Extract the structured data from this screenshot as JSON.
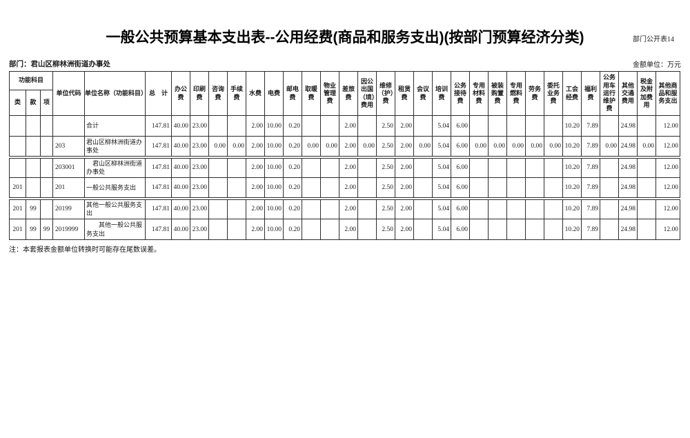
{
  "page": {
    "corner_label": "部门公开表14",
    "title": "一般公共预算基本支出表--公用经费(商品和服务支出)(按部门预算经济分类)",
    "department": "部门：君山区柳林洲街道办事处",
    "unit": "金额单位：万元",
    "note": "注：本套报表金额单位转换时可能存在尾数误差。"
  },
  "table": {
    "header": {
      "function_subject": "功能科目",
      "function_cols": [
        "类",
        "款",
        "项"
      ],
      "unit_code": "单位代码",
      "unit_name": "单位名称（功能科目）",
      "total": "总　计",
      "expense_columns": [
        "办公费",
        "印刷费",
        "咨询费",
        "手续费",
        "水费",
        "电费",
        "邮电费",
        "取暖费",
        "物业管理费",
        "差旅费",
        "因公出国（境）费用",
        "维修（护）费",
        "租赁费",
        "会议费",
        "培训费",
        "公务接待费",
        "专用材料费",
        "被装购置费",
        "专用燃料费",
        "劳务费",
        "委托业务费",
        "工会经费",
        "福利费",
        "公务用车运行维护费",
        "其他交通费用",
        "税金及附加费用",
        "其他商品和服务支出"
      ]
    },
    "rows": [
      {
        "lei": "",
        "kuan": "",
        "xiang": "",
        "code": "",
        "name": "合计",
        "total": "147.81",
        "values": [
          "40.00",
          "23.00",
          "",
          "",
          "2.00",
          "10.00",
          "0.20",
          "",
          "",
          "2.00",
          "",
          "2.50",
          "2.00",
          "",
          "5.04",
          "6.00",
          "",
          "",
          "",
          "",
          "",
          "10.20",
          "7.89",
          "",
          "24.98",
          "",
          "12.00"
        ]
      },
      {
        "lei": "",
        "kuan": "",
        "xiang": "",
        "code": "203",
        "name": "君山区柳林洲街道办事处",
        "total": "147.81",
        "values": [
          "40.00",
          "23.00",
          "0.00",
          "0.00",
          "2.00",
          "10.00",
          "0.20",
          "0.00",
          "0.00",
          "2.00",
          "0.00",
          "2.50",
          "2.00",
          "0.00",
          "5.04",
          "6.00",
          "0.00",
          "0.00",
          "0.00",
          "0.00",
          "0.00",
          "10.20",
          "7.89",
          "0.00",
          "24.98",
          "0.00",
          "12.00"
        ]
      },
      {
        "lei": "",
        "kuan": "",
        "xiang": "",
        "code": "203001",
        "name": "　君山区柳林洲街道办事处",
        "total": "147.81",
        "values": [
          "40.00",
          "23.00",
          "",
          "",
          "2.00",
          "10.00",
          "0.20",
          "",
          "",
          "2.00",
          "",
          "2.50",
          "2.00",
          "",
          "5.04",
          "6.00",
          "",
          "",
          "",
          "",
          "",
          "10.20",
          "7.89",
          "",
          "24.98",
          "",
          "12.00"
        ]
      },
      {
        "lei": "201",
        "kuan": "",
        "xiang": "",
        "code": "201",
        "name": "一般公共服务支出",
        "total": "147.81",
        "values": [
          "40.00",
          "23.00",
          "",
          "",
          "2.00",
          "10.00",
          "0.20",
          "",
          "",
          "2.00",
          "",
          "2.50",
          "2.00",
          "",
          "5.04",
          "6.00",
          "",
          "",
          "",
          "",
          "",
          "10.20",
          "7.89",
          "",
          "24.98",
          "",
          "12.00"
        ]
      },
      {
        "lei": "201",
        "kuan": "99",
        "xiang": "",
        "code": "20199",
        "name": "其他一般公共服务支出",
        "total": "147.81",
        "values": [
          "40.00",
          "23.00",
          "",
          "",
          "2.00",
          "10.00",
          "0.20",
          "",
          "",
          "2.00",
          "",
          "2.50",
          "2.00",
          "",
          "5.04",
          "6.00",
          "",
          "",
          "",
          "",
          "",
          "10.20",
          "7.89",
          "",
          "24.98",
          "",
          "12.00"
        ]
      },
      {
        "lei": "201",
        "kuan": "99",
        "xiang": "99",
        "code": "2019999",
        "name": "　　其他一般公共服务支出",
        "total": "147.81",
        "values": [
          "40.00",
          "23.00",
          "",
          "",
          "2.00",
          "10.00",
          "0.20",
          "",
          "",
          "2.00",
          "",
          "2.50",
          "2.00",
          "",
          "5.04",
          "6.00",
          "",
          "",
          "",
          "",
          "",
          "10.20",
          "7.89",
          "",
          "24.98",
          "",
          "12.00"
        ]
      }
    ]
  }
}
